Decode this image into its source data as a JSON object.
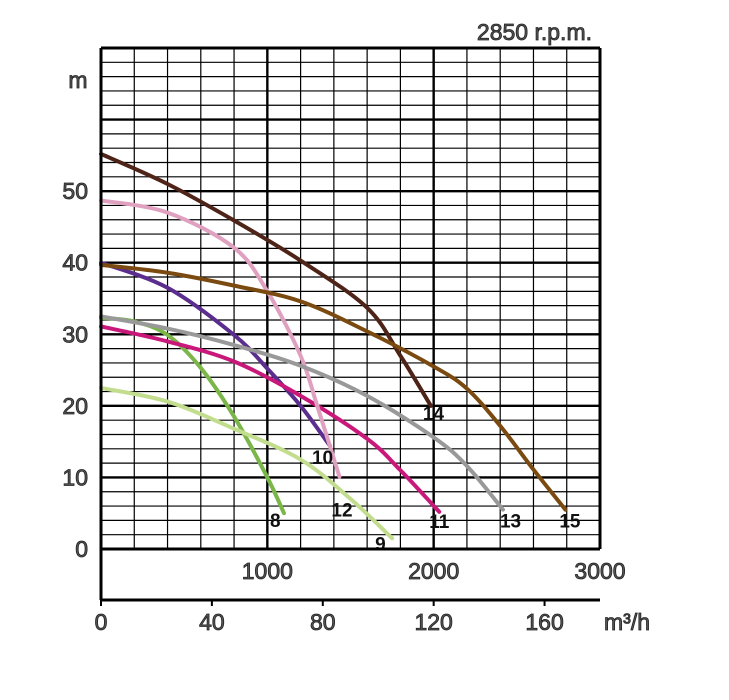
{
  "chart_data": {
    "type": "line",
    "title": "2850 r.p.m.",
    "ylabel": "m",
    "xlabel": "m³/h",
    "x2label": "",
    "ylim": [
      0,
      70
    ],
    "xlim": [
      0,
      180
    ],
    "x2lim": [
      0,
      3000
    ],
    "grid": true,
    "yticks": [
      0,
      10,
      20,
      30,
      40,
      50
    ],
    "xticks": [
      0,
      40,
      80,
      120,
      160
    ],
    "x2ticks": [
      1000,
      2000,
      3000
    ],
    "series": [
      {
        "name": "8",
        "color": "#7ab648",
        "points": [
          [
            0,
            32.3
          ],
          [
            12,
            31.8
          ],
          [
            24,
            29.9
          ],
          [
            36,
            25.3
          ],
          [
            48,
            18.5
          ],
          [
            60,
            10
          ],
          [
            66,
            5
          ]
        ]
      },
      {
        "name": "9",
        "color": "#c3dd8f",
        "points": [
          [
            0,
            22.5
          ],
          [
            24,
            20.6
          ],
          [
            48,
            16.8
          ],
          [
            72,
            12.5
          ],
          [
            90,
            7
          ],
          [
            105,
            1.5
          ]
        ]
      },
      {
        "name": "10",
        "color": "#5b2d8e",
        "points": [
          [
            0,
            40
          ],
          [
            24,
            36.5
          ],
          [
            48,
            29.9
          ],
          [
            60,
            25.2
          ],
          [
            72,
            20
          ],
          [
            82.6,
            14.4
          ]
        ]
      },
      {
        "name": "11",
        "color": "#c8197b",
        "points": [
          [
            0,
            31.1
          ],
          [
            24,
            29
          ],
          [
            48,
            26.2
          ],
          [
            72,
            21.4
          ],
          [
            96,
            15.4
          ],
          [
            108,
            11
          ],
          [
            122,
            5.2
          ]
        ]
      },
      {
        "name": "12",
        "color": "#e0a0c0",
        "points": [
          [
            0,
            48.7
          ],
          [
            24,
            47
          ],
          [
            48,
            42.1
          ],
          [
            60,
            36
          ],
          [
            72,
            27
          ],
          [
            78,
            20
          ],
          [
            86,
            10.1
          ]
        ]
      },
      {
        "name": "13",
        "color": "#999999",
        "points": [
          [
            0,
            32.5
          ],
          [
            24,
            30.8
          ],
          [
            48,
            28.5
          ],
          [
            72,
            25.6
          ],
          [
            96,
            21.4
          ],
          [
            120,
            15.6
          ],
          [
            132,
            11.6
          ],
          [
            145,
            5.5
          ]
        ]
      },
      {
        "name": "14",
        "color": "#4e2318",
        "points": [
          [
            0,
            55.2
          ],
          [
            24,
            51
          ],
          [
            48,
            45.9
          ],
          [
            72,
            40.3
          ],
          [
            96,
            33.7
          ],
          [
            108,
            27
          ],
          [
            119,
            20
          ]
        ]
      },
      {
        "name": "15",
        "color": "#7a4a10",
        "points": [
          [
            0,
            39.7
          ],
          [
            24,
            38.6
          ],
          [
            48,
            36.8
          ],
          [
            72,
            34.6
          ],
          [
            96,
            30.4
          ],
          [
            120,
            25.5
          ],
          [
            132,
            22.4
          ],
          [
            144,
            17.2
          ],
          [
            156,
            11.1
          ],
          [
            167.5,
            5.5
          ]
        ]
      }
    ]
  }
}
